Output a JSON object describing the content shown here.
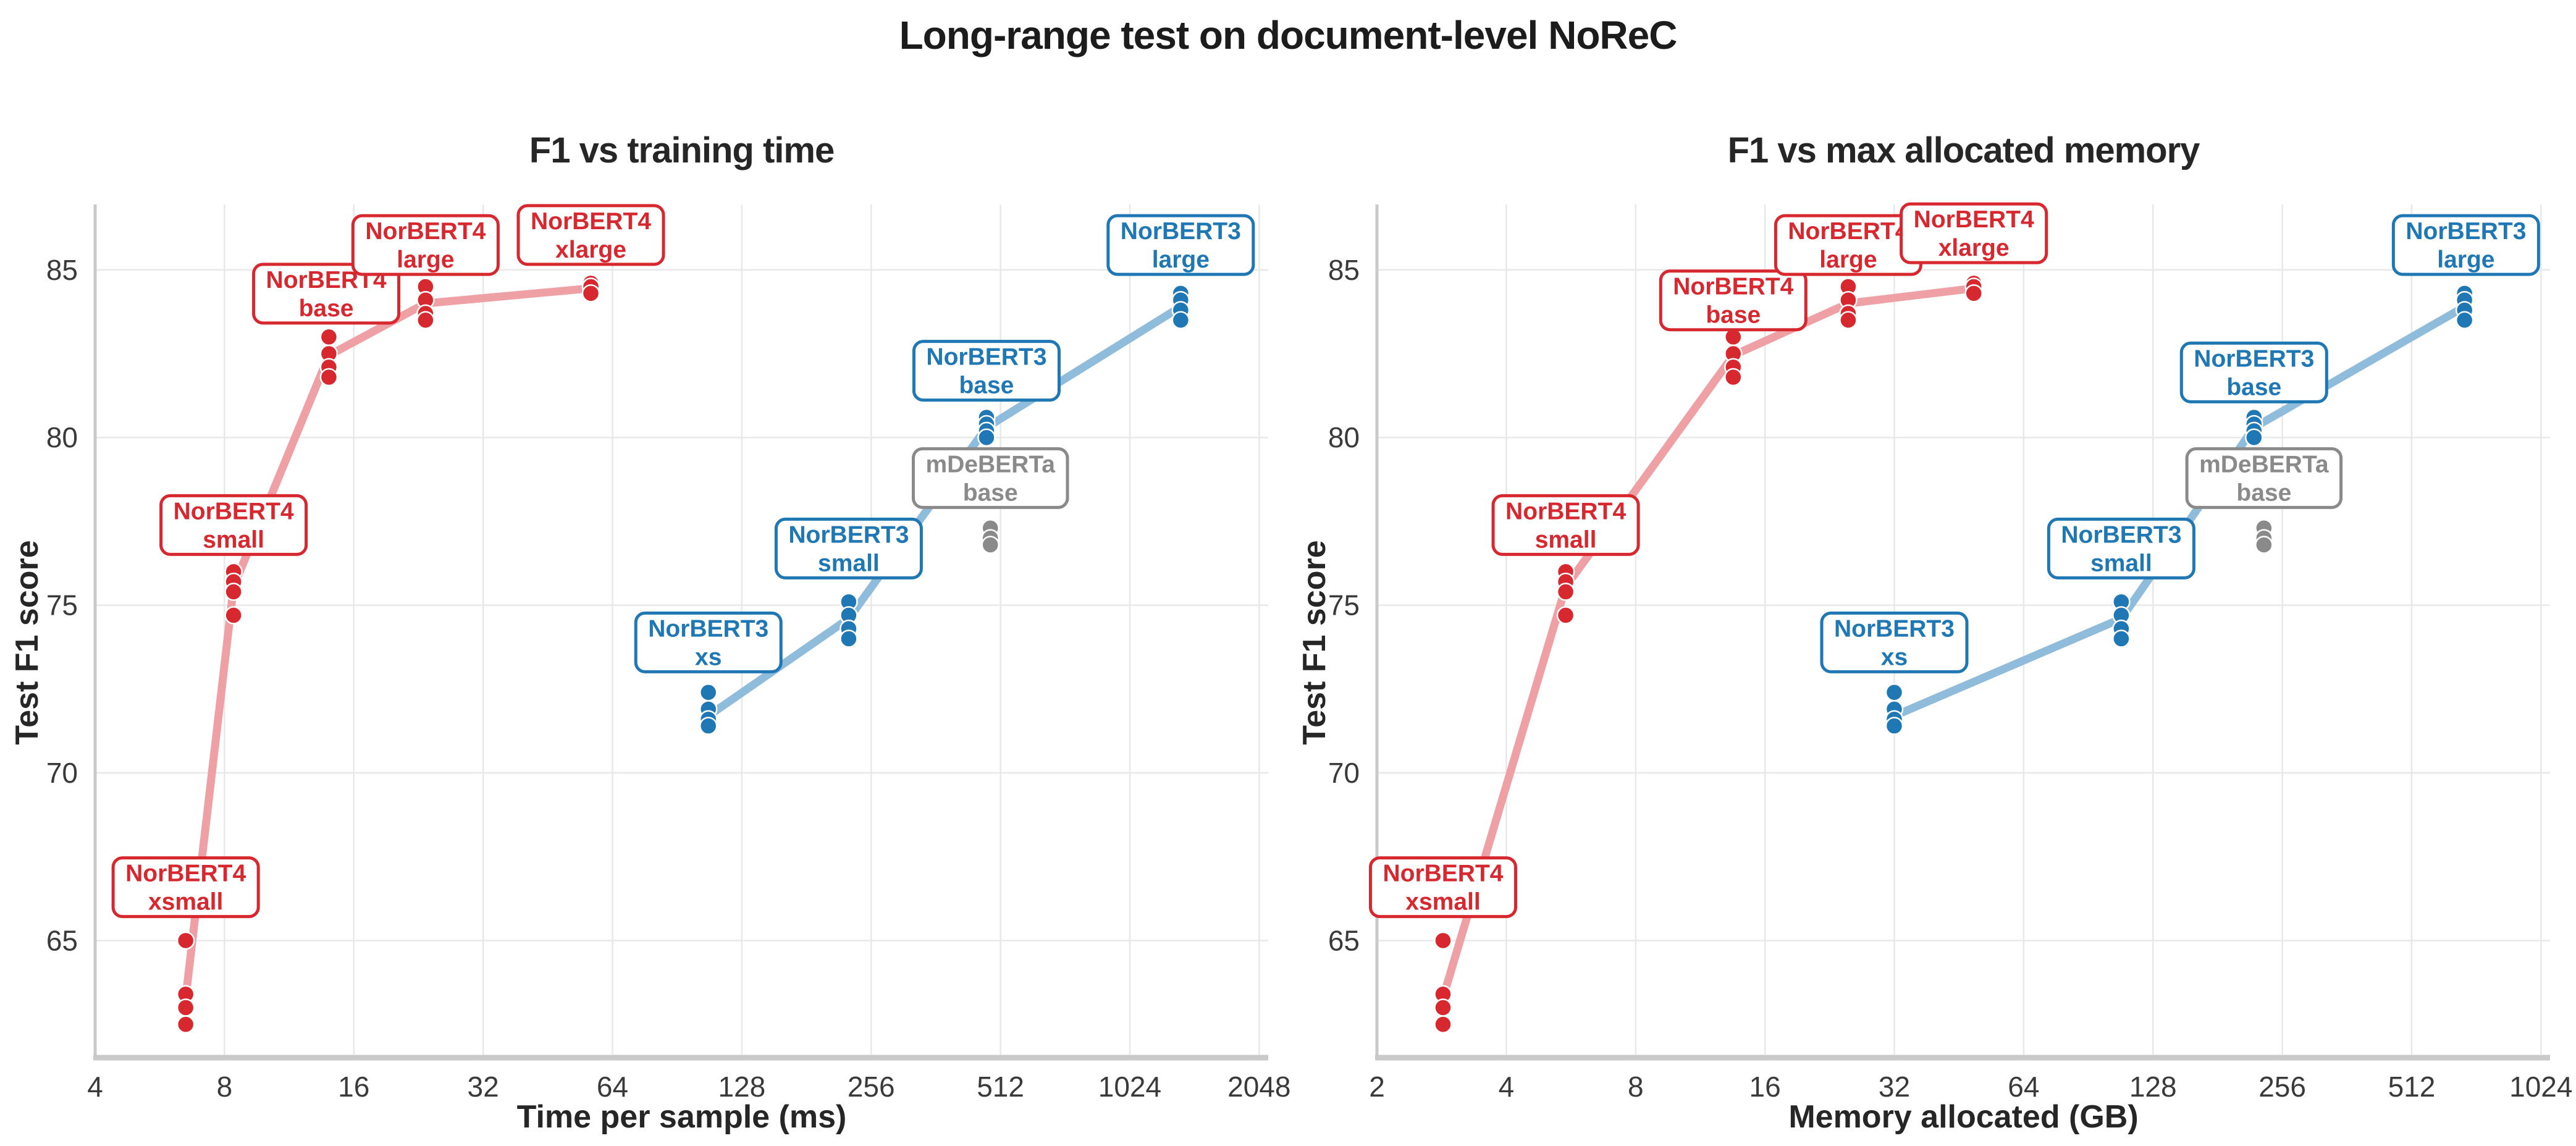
{
  "figure": {
    "title": "Long-range test on document-level NoReC"
  },
  "palette": {
    "norbert4": "#d7282f",
    "norbert4_line": "#efa0a4",
    "norbert3": "#1f77b4",
    "norbert3_line": "#90bcdb",
    "mdeberta": "#8a8a8a",
    "grid": "#e8e8e8",
    "spine": "#c9c9c9",
    "tick_text": "#3a3a3a",
    "title_text": "#1c1c1c"
  },
  "chart_data": [
    {
      "type": "scatter",
      "title": "F1 vs training time",
      "xlabel": "Time per sample (ms)",
      "ylabel": "Test F1 score",
      "xscale": "log2",
      "grid": true,
      "xlim": [
        4,
        2150
      ],
      "ylim": [
        61.6,
        86.95
      ],
      "xticks": [
        4,
        8,
        16,
        32,
        64,
        128,
        256,
        512,
        1024,
        2048
      ],
      "yticks": [
        65,
        70,
        75,
        80,
        85
      ],
      "series": [
        {
          "id": "norbert4-xsmall",
          "label_lines": [
            "NorBERT4",
            "xsmall"
          ],
          "color_key": "norbert4",
          "x": 6.5,
          "points": [
            65.0,
            63.4,
            63.0,
            62.5
          ],
          "node": 63.3,
          "label_at": [
            6.5,
            66.6
          ]
        },
        {
          "id": "norbert4-small",
          "label_lines": [
            "NorBERT4",
            "small"
          ],
          "color_key": "norbert4",
          "x": 8.4,
          "points": [
            76.0,
            75.7,
            75.4,
            74.7
          ],
          "node": 75.55,
          "label_at": [
            8.4,
            77.4
          ]
        },
        {
          "id": "norbert4-base",
          "label_lines": [
            "NorBERT4",
            "base"
          ],
          "color_key": "norbert4",
          "x": 14,
          "points": [
            83.0,
            82.5,
            82.1,
            81.8
          ],
          "node": 82.45,
          "label_at": [
            13.8,
            84.3
          ]
        },
        {
          "id": "norbert4-large",
          "label_lines": [
            "NorBERT4",
            "large"
          ],
          "color_key": "norbert4",
          "x": 23.5,
          "points": [
            84.5,
            84.1,
            83.7,
            83.5
          ],
          "node": 84.0,
          "label_at": [
            23.5,
            85.75
          ]
        },
        {
          "id": "norbert4-xlarge",
          "label_lines": [
            "NorBERT4",
            "xlarge"
          ],
          "color_key": "norbert4",
          "x": 57,
          "points": [
            84.6,
            84.5,
            84.3
          ],
          "node": 84.45,
          "label_at": [
            57,
            86.05
          ]
        },
        {
          "id": "norbert3-xs",
          "label_lines": [
            "NorBERT3",
            "xs"
          ],
          "color_key": "norbert3",
          "x": 107,
          "points": [
            72.4,
            71.9,
            71.6,
            71.4
          ],
          "node": 71.7,
          "label_at": [
            107,
            73.9
          ]
        },
        {
          "id": "norbert3-small",
          "label_lines": [
            "NorBERT3",
            "small"
          ],
          "color_key": "norbert3",
          "x": 227,
          "points": [
            75.1,
            74.7,
            74.3,
            74.0
          ],
          "node": 74.6,
          "label_at": [
            227,
            76.7
          ]
        },
        {
          "id": "norbert3-base",
          "label_lines": [
            "NorBERT3",
            "base"
          ],
          "color_key": "norbert3",
          "x": 475,
          "points": [
            80.6,
            80.4,
            80.2,
            80.0
          ],
          "node": 80.3,
          "label_at": [
            475,
            82.0
          ]
        },
        {
          "id": "norbert3-large",
          "label_lines": [
            "NorBERT3",
            "large"
          ],
          "color_key": "norbert3",
          "x": 1345,
          "points": [
            84.3,
            84.1,
            83.8,
            83.5
          ],
          "node": 83.9,
          "label_at": [
            1345,
            85.75
          ]
        },
        {
          "id": "mdeberta-base",
          "label_lines": [
            "mDeBERTa",
            "base"
          ],
          "color_key": "mdeberta",
          "x": 485,
          "points": [
            77.3,
            77.0,
            76.8
          ],
          "node": null,
          "label_at": [
            485,
            78.8
          ]
        }
      ]
    },
    {
      "type": "scatter",
      "title": "F1 vs max allocated memory",
      "xlabel": "Memory allocated (GB)",
      "ylabel": "Test F1 score",
      "xscale": "log2",
      "grid": true,
      "xlim": [
        2,
        1075
      ],
      "ylim": [
        61.6,
        86.95
      ],
      "xticks": [
        2,
        4,
        8,
        16,
        32,
        64,
        128,
        256,
        512,
        1024
      ],
      "yticks": [
        65,
        70,
        75,
        80,
        85
      ],
      "series": [
        {
          "id": "norbert4-xsmall",
          "label_lines": [
            "NorBERT4",
            "xsmall"
          ],
          "color_key": "norbert4",
          "x": 2.85,
          "points": [
            65.0,
            63.4,
            63.0,
            62.5
          ],
          "node": 63.3,
          "label_at": [
            2.85,
            66.6
          ]
        },
        {
          "id": "norbert4-small",
          "label_lines": [
            "NorBERT4",
            "small"
          ],
          "color_key": "norbert4",
          "x": 5.5,
          "points": [
            76.0,
            75.7,
            75.4,
            74.7
          ],
          "node": 75.55,
          "label_at": [
            5.5,
            77.4
          ]
        },
        {
          "id": "norbert4-base",
          "label_lines": [
            "NorBERT4",
            "base"
          ],
          "color_key": "norbert4",
          "x": 13.5,
          "points": [
            83.0,
            82.5,
            82.1,
            81.8
          ],
          "node": 82.45,
          "label_at": [
            13.5,
            84.1
          ]
        },
        {
          "id": "norbert4-large",
          "label_lines": [
            "NorBERT4",
            "large"
          ],
          "color_key": "norbert4",
          "x": 25,
          "points": [
            84.5,
            84.1,
            83.7,
            83.5
          ],
          "node": 84.0,
          "label_at": [
            25,
            85.75
          ]
        },
        {
          "id": "norbert4-xlarge",
          "label_lines": [
            "NorBERT4",
            "xlarge"
          ],
          "color_key": "norbert4",
          "x": 49,
          "points": [
            84.6,
            84.5,
            84.3
          ],
          "node": 84.45,
          "label_at": [
            49,
            86.1
          ]
        },
        {
          "id": "norbert3-xs",
          "label_lines": [
            "NorBERT3",
            "xs"
          ],
          "color_key": "norbert3",
          "x": 32,
          "points": [
            72.4,
            71.9,
            71.6,
            71.4
          ],
          "node": 71.7,
          "label_at": [
            32,
            73.9
          ]
        },
        {
          "id": "norbert3-small",
          "label_lines": [
            "NorBERT3",
            "small"
          ],
          "color_key": "norbert3",
          "x": 108,
          "points": [
            75.1,
            74.7,
            74.3,
            74.0
          ],
          "node": 74.6,
          "label_at": [
            108,
            76.7
          ]
        },
        {
          "id": "norbert3-base",
          "label_lines": [
            "NorBERT3",
            "base"
          ],
          "color_key": "norbert3",
          "x": 220,
          "points": [
            80.6,
            80.4,
            80.2,
            80.0
          ],
          "node": 80.3,
          "label_at": [
            220,
            81.95
          ]
        },
        {
          "id": "norbert3-large",
          "label_lines": [
            "NorBERT3",
            "large"
          ],
          "color_key": "norbert3",
          "x": 680,
          "points": [
            84.3,
            84.1,
            83.8,
            83.5
          ],
          "node": 83.9,
          "label_at": [
            685,
            85.75
          ]
        },
        {
          "id": "mdeberta-base",
          "label_lines": [
            "mDeBERTa",
            "base"
          ],
          "color_key": "mdeberta",
          "x": 232,
          "points": [
            77.3,
            77.0,
            76.8
          ],
          "node": null,
          "label_at": [
            232,
            78.8
          ]
        }
      ]
    }
  ]
}
